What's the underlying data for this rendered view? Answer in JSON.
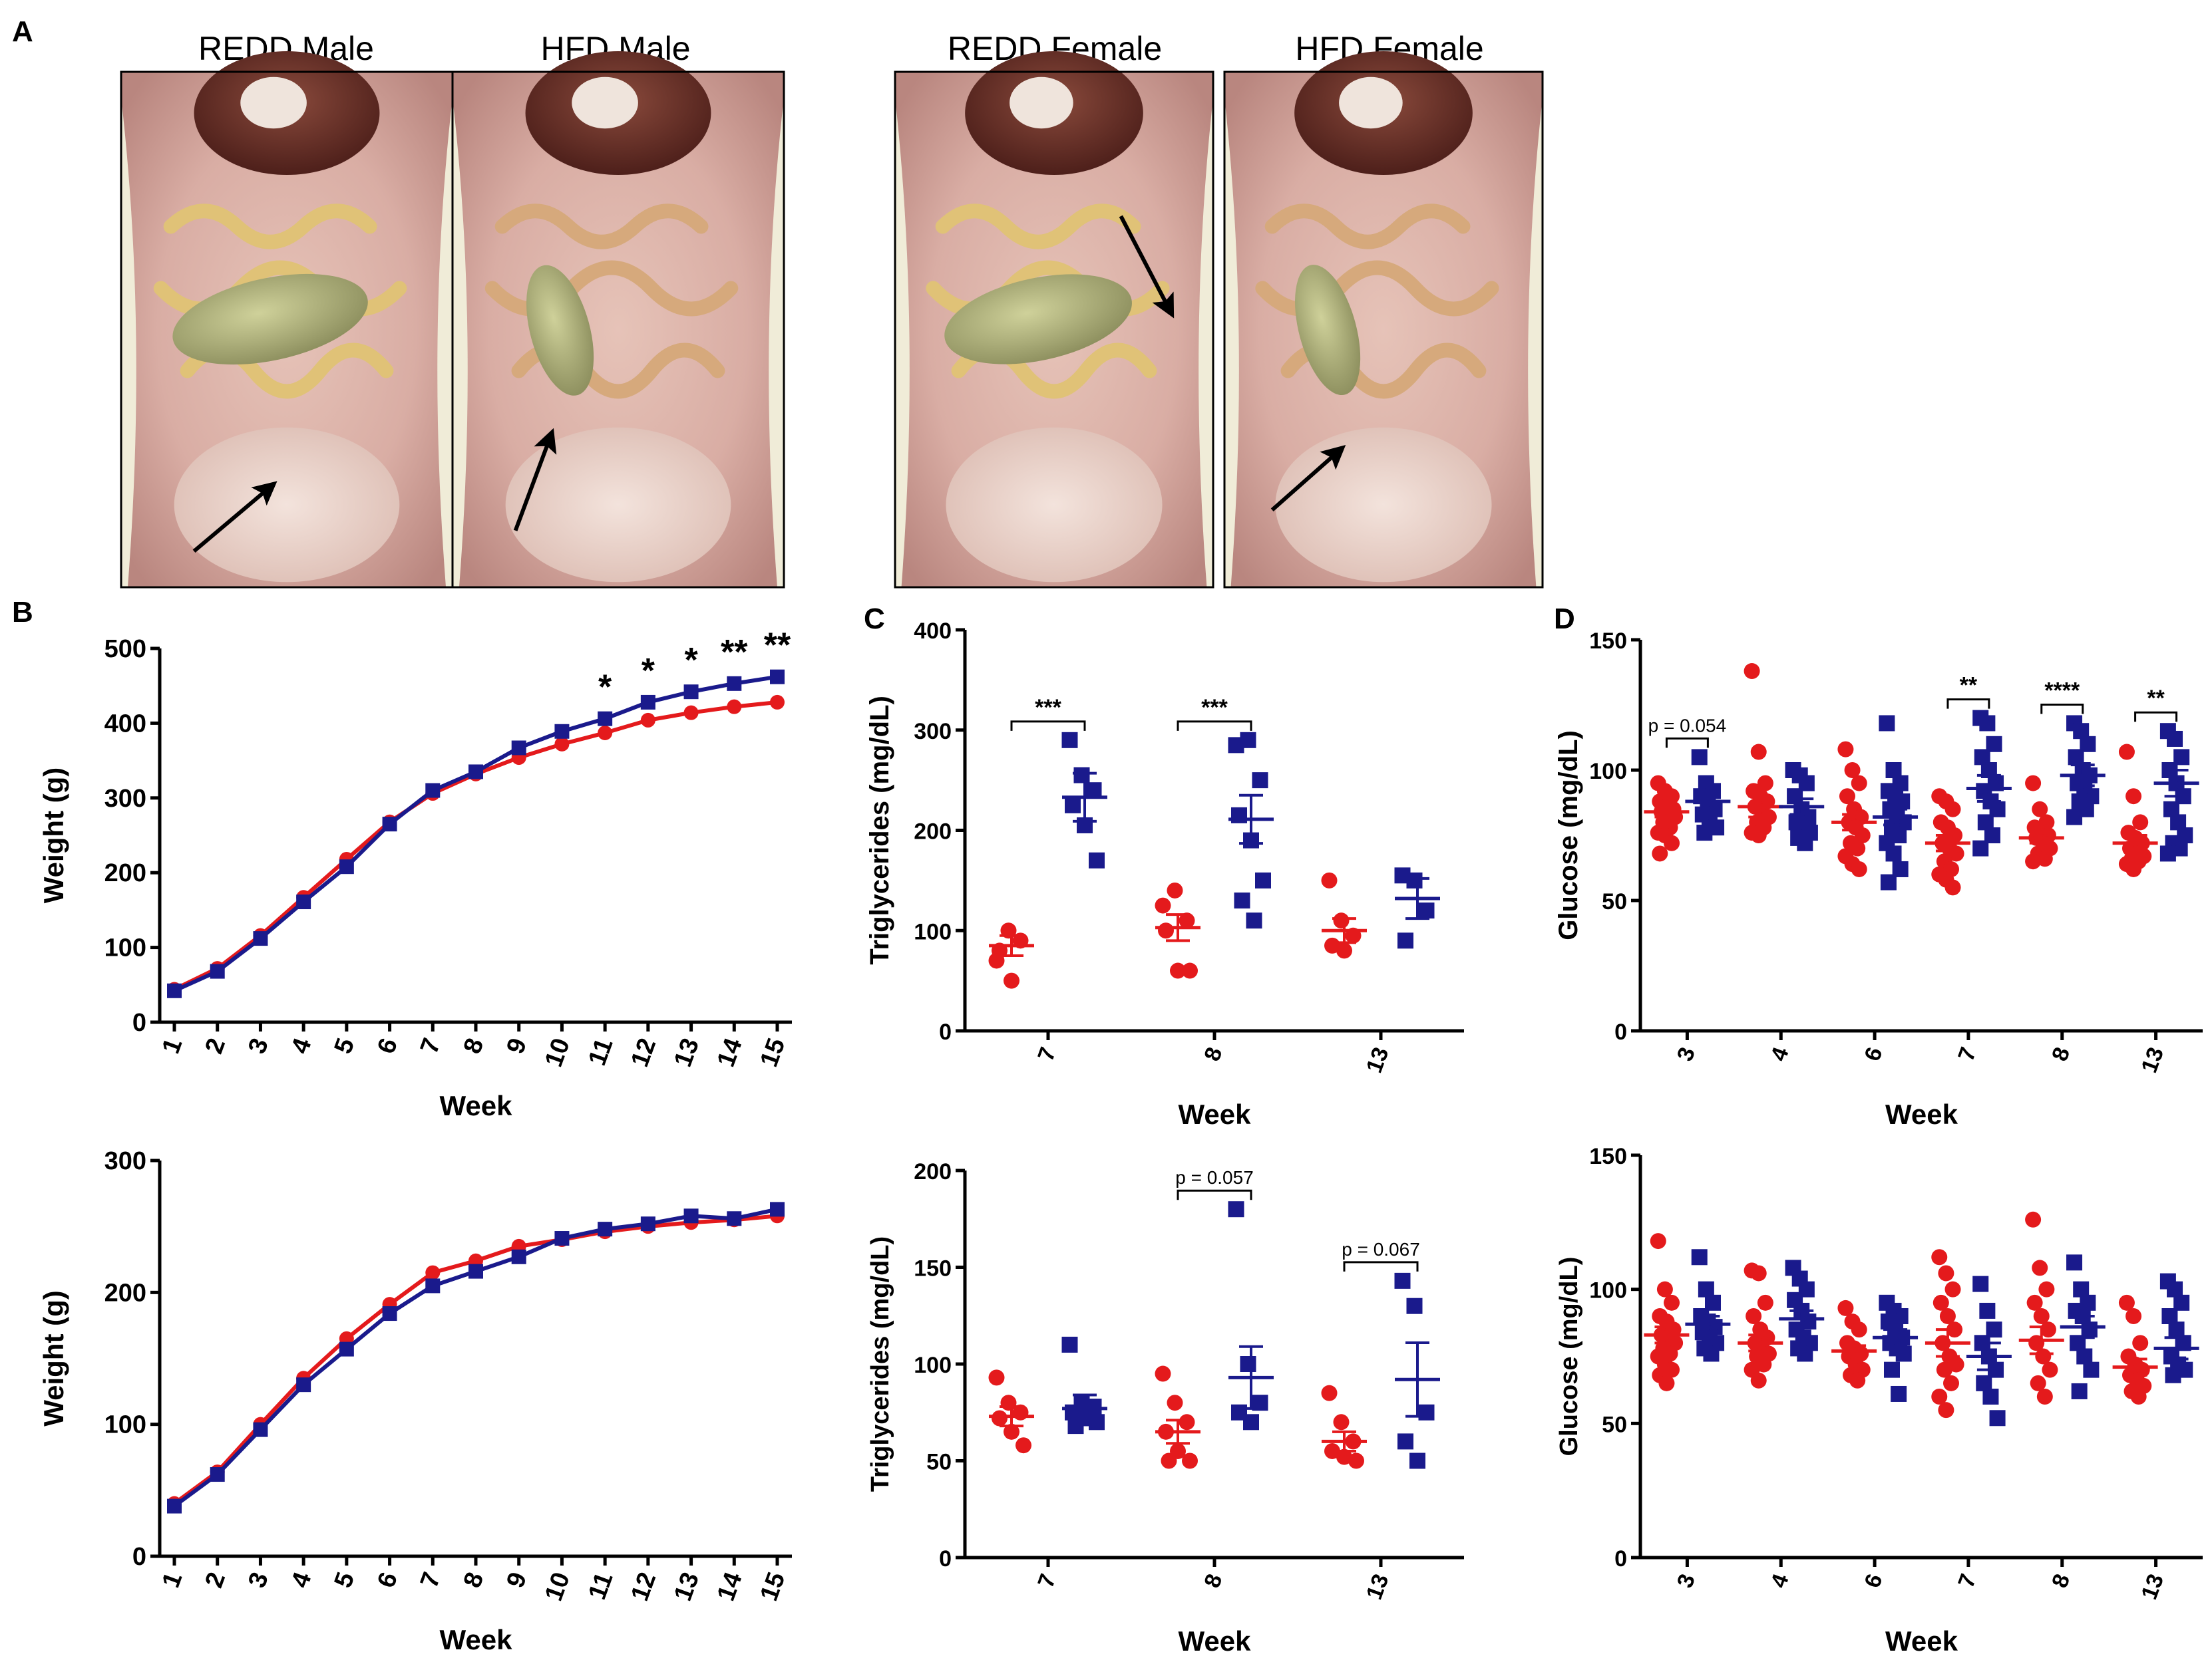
{
  "figure": {
    "panel_letters": [
      "A",
      "B",
      "C",
      "D"
    ],
    "photos": [
      {
        "label": "REDD Male",
        "arrow": "black arrow indicating fat pad"
      },
      {
        "label": "HFD Male",
        "arrow": "black arrow indicating fat pad"
      },
      {
        "label": "REDD Female",
        "arrow": "black arrow indicating fat pad"
      },
      {
        "label": "HFD Female",
        "arrow": "black arrow indicating fat pad"
      }
    ],
    "colors": {
      "redd": "#e41a1c",
      "hfd": "#1a1a8c",
      "axis": "#000000"
    }
  },
  "chart_data": [
    {
      "id": "B-male",
      "type": "line",
      "xlabel": "Week",
      "ylabel": "Weight (g)",
      "ylim": [
        0,
        500
      ],
      "yticks": [
        0,
        100,
        200,
        300,
        400,
        500
      ],
      "x": [
        1,
        2,
        3,
        4,
        5,
        6,
        7,
        8,
        9,
        10,
        11,
        12,
        13,
        14,
        15
      ],
      "series": [
        {
          "name": "REDD",
          "color": "#e41a1c",
          "marker": "circle",
          "values": [
            44,
            72,
            116,
            167,
            218,
            268,
            306,
            332,
            354,
            372,
            387,
            404,
            414,
            422,
            428
          ]
        },
        {
          "name": "HFD",
          "color": "#1a1a8c",
          "marker": "square",
          "values": [
            42,
            68,
            112,
            161,
            208,
            265,
            310,
            335,
            367,
            389,
            406,
            428,
            442,
            453,
            462
          ]
        }
      ],
      "annotations": [
        {
          "x": 11,
          "text": "*"
        },
        {
          "x": 12,
          "text": "*"
        },
        {
          "x": 13,
          "text": "*"
        },
        {
          "x": 14,
          "text": "**"
        },
        {
          "x": 15,
          "text": "**"
        }
      ]
    },
    {
      "id": "B-female",
      "type": "line",
      "xlabel": "Week",
      "ylabel": "Weight (g)",
      "ylim": [
        0,
        300
      ],
      "yticks": [
        0,
        100,
        200,
        300
      ],
      "x": [
        1,
        2,
        3,
        4,
        5,
        6,
        7,
        8,
        9,
        10,
        11,
        12,
        13,
        14,
        15
      ],
      "series": [
        {
          "name": "REDD",
          "color": "#e41a1c",
          "marker": "circle",
          "values": [
            40,
            64,
            100,
            135,
            165,
            191,
            215,
            224,
            235,
            240,
            246,
            250,
            253,
            255,
            258
          ]
        },
        {
          "name": "HFD",
          "color": "#1a1a8c",
          "marker": "square",
          "values": [
            38,
            62,
            96,
            130,
            157,
            184,
            205,
            216,
            227,
            241,
            248,
            252,
            258,
            256,
            263
          ]
        }
      ]
    },
    {
      "id": "C-male",
      "type": "scatter",
      "xlabel": "Week",
      "ylabel": "Triglycerides (mg/dL)",
      "ylim": [
        0,
        400
      ],
      "yticks": [
        0,
        100,
        200,
        300,
        400
      ],
      "categories": [
        "7",
        "8",
        "13"
      ],
      "series": [
        {
          "name": "REDD",
          "color": "#e41a1c",
          "marker": "circle",
          "points": [
            [
              70,
              100,
              90,
              80,
              50
            ],
            [
              125,
              140,
              110,
              100,
              60,
              60
            ],
            [
              150,
              110,
              95,
              85,
              80
            ]
          ],
          "mean": [
            85,
            103,
            100
          ],
          "sem": [
            10,
            13,
            12
          ]
        },
        {
          "name": "HFD",
          "color": "#1a1a8c",
          "marker": "square",
          "points": [
            [
              290,
              255,
              240,
              225,
              205,
              170
            ],
            [
              285,
              290,
              250,
              215,
              190,
              150,
              130,
              110
            ],
            [
              155,
              150,
              120,
              90
            ]
          ],
          "mean": [
            233,
            211,
            132
          ],
          "sem": [
            24,
            24,
            20
          ]
        }
      ],
      "annotations": [
        {
          "category": "7",
          "text": "***"
        },
        {
          "category": "8",
          "text": "***"
        }
      ]
    },
    {
      "id": "C-female",
      "type": "scatter",
      "xlabel": "Week",
      "ylabel": "Triglycerides (mg/dL)",
      "ylim": [
        0,
        200
      ],
      "yticks": [
        0,
        50,
        100,
        150,
        200
      ],
      "categories": [
        "7",
        "8",
        "13"
      ],
      "series": [
        {
          "name": "REDD",
          "color": "#e41a1c",
          "marker": "circle",
          "points": [
            [
              93,
              80,
              75,
              72,
              65,
              58
            ],
            [
              95,
              80,
              70,
              65,
              55,
              50,
              50
            ],
            [
              85,
              70,
              60,
              55,
              52,
              50
            ]
          ],
          "mean": [
            73,
            65,
            60
          ],
          "sem": [
            5,
            6,
            5
          ]
        },
        {
          "name": "HFD",
          "color": "#1a1a8c",
          "marker": "square",
          "points": [
            [
              110,
              80,
              78,
              75,
              72,
              70,
              68
            ],
            [
              180,
              100,
              80,
              75,
              70
            ],
            [
              143,
              130,
              75,
              60,
              50
            ]
          ],
          "mean": [
            77,
            93,
            92
          ],
          "sem": [
            7,
            16,
            19
          ]
        }
      ],
      "annotations": [
        {
          "category": "8",
          "text": "p = 0.057"
        },
        {
          "category": "13",
          "text": "p  = 0.067"
        }
      ]
    },
    {
      "id": "D-male",
      "type": "scatter",
      "xlabel": "Week",
      "ylabel": "Glucose (mg/dL)",
      "ylim": [
        0,
        150
      ],
      "yticks": [
        0,
        50,
        100,
        150
      ],
      "categories": [
        "3",
        "4",
        "6",
        "7",
        "8",
        "13"
      ],
      "series": [
        {
          "name": "REDD",
          "color": "#e41a1c",
          "marker": "circle",
          "points": [
            [
              95,
              92,
              90,
              88,
              86,
              85,
              84,
              83,
              82,
              80,
              78,
              76,
              75,
              72,
              68
            ],
            [
              138,
              107,
              95,
              92,
              90,
              88,
              86,
              84,
              82,
              80,
              78,
              76,
              75
            ],
            [
              108,
              100,
              95,
              90,
              85,
              82,
              80,
              78,
              75,
              72,
              70,
              67,
              64,
              62
            ],
            [
              90,
              88,
              85,
              80,
              78,
              75,
              72,
              70,
              68,
              65,
              62,
              60,
              58,
              55
            ],
            [
              95,
              85,
              80,
              78,
              76,
              75,
              74,
              72,
              70,
              68,
              66,
              65
            ],
            [
              107,
              90,
              80,
              76,
              74,
              72,
              70,
              68,
              67,
              66,
              65,
              64,
              62
            ]
          ],
          "mean": [
            84,
            86,
            80,
            72,
            74,
            72
          ],
          "sem": [
            2,
            4,
            3,
            3,
            2,
            3
          ]
        },
        {
          "name": "HFD",
          "color": "#1a1a8c",
          "marker": "square",
          "points": [
            [
              105,
              95,
              92,
              90,
              88,
              85,
              83,
              80,
              78,
              76
            ],
            [
              100,
              98,
              95,
              90,
              85,
              82,
              80,
              78,
              76,
              74,
              72
            ],
            [
              118,
              100,
              95,
              92,
              90,
              88,
              85,
              82,
              80,
              78,
              75,
              72,
              68,
              62,
              57
            ],
            [
              120,
              118,
              110,
              105,
              100,
              95,
              92,
              88,
              85,
              80,
              75,
              70
            ],
            [
              118,
              115,
              110,
              105,
              100,
              98,
              95,
              92,
              90,
              88,
              85,
              82
            ],
            [
              115,
              112,
              105,
              100,
              95,
              90,
              85,
              80,
              75,
              72,
              70,
              68
            ]
          ],
          "mean": [
            88,
            86,
            82,
            93,
            98,
            95
          ],
          "sem": [
            3,
            3,
            3,
            5,
            4,
            5
          ]
        }
      ],
      "annotations": [
        {
          "category": "3",
          "text": "p = 0.054"
        },
        {
          "category": "7",
          "text": "**"
        },
        {
          "category": "8",
          "text": "****"
        },
        {
          "category": "13",
          "text": "**"
        }
      ]
    },
    {
      "id": "D-female",
      "type": "scatter",
      "xlabel": "Week",
      "ylabel": "Glucose (mg/dL)",
      "ylim": [
        0,
        150
      ],
      "yticks": [
        0,
        50,
        100,
        150
      ],
      "categories": [
        "3",
        "4",
        "6",
        "7",
        "8",
        "13"
      ],
      "series": [
        {
          "name": "REDD",
          "color": "#e41a1c",
          "marker": "circle",
          "points": [
            [
              118,
              100,
              95,
              90,
              88,
              85,
              83,
              82,
              80,
              78,
              76,
              75,
              72,
              70,
              68,
              65
            ],
            [
              107,
              106,
              95,
              90,
              85,
              82,
              80,
              78,
              76,
              75,
              72,
              70,
              66
            ],
            [
              93,
              88,
              85,
              80,
              78,
              76,
              75,
              72,
              70,
              68,
              66
            ],
            [
              112,
              106,
              100,
              95,
              90,
              85,
              80,
              75,
              72,
              70,
              65,
              60,
              55
            ],
            [
              126,
              108,
              100,
              95,
              90,
              85,
              80,
              75,
              70,
              65,
              60
            ],
            [
              95,
              90,
              80,
              75,
              72,
              70,
              68,
              66,
              64,
              62,
              60
            ]
          ],
          "mean": [
            83,
            80,
            77,
            80,
            81,
            71
          ],
          "sem": [
            3,
            3,
            2,
            5,
            5,
            3
          ]
        },
        {
          "name": "HFD",
          "color": "#1a1a8c",
          "marker": "square",
          "points": [
            [
              112,
              100,
              95,
              90,
              88,
              86,
              84,
              82,
              80,
              78,
              76
            ],
            [
              108,
              104,
              100,
              96,
              92,
              88,
              85,
              82,
              80,
              78,
              76
            ],
            [
              95,
              92,
              90,
              88,
              85,
              82,
              80,
              78,
              76,
              70,
              61
            ],
            [
              102,
              92,
              85,
              80,
              75,
              70,
              65,
              60,
              52
            ],
            [
              110,
              100,
              95,
              92,
              90,
              85,
              80,
              75,
              70,
              62
            ],
            [
              103,
              100,
              95,
              90,
              85,
              80,
              75,
              72,
              70,
              68
            ]
          ],
          "mean": [
            87,
            89,
            82,
            75,
            86,
            78
          ],
          "sem": [
            3,
            3,
            3,
            5,
            4,
            4
          ]
        }
      ]
    }
  ]
}
